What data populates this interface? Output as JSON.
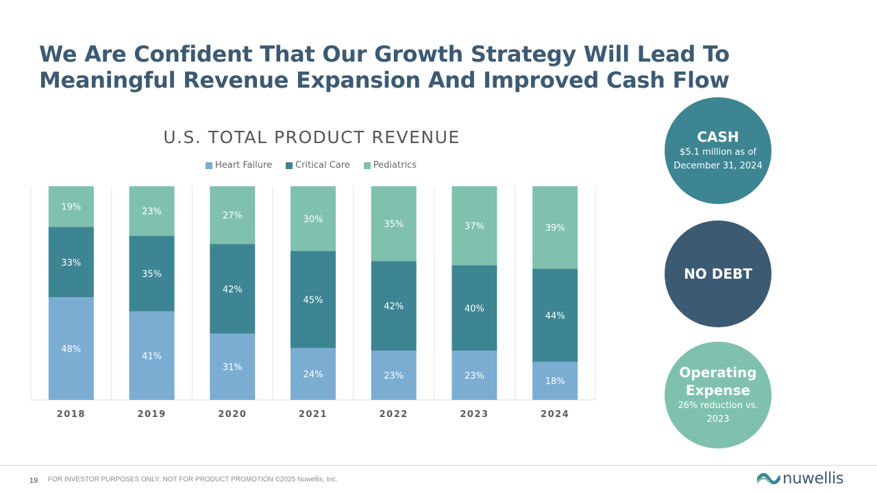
{
  "slide": {
    "title_line1": "We Are Confident That Our Growth Strategy Will Lead To",
    "title_line2": "Meaningful Revenue Expansion And Improved Cash Flow",
    "page_number": "19",
    "footer": "FOR INVESTOR PURPOSES ONLY: NOT FOR PRODUCT PROMOTION ©2025 Nuwellis, Inc.",
    "logo_text": "nuwellis"
  },
  "circles": {
    "cash": {
      "heading": "CASH",
      "text": "$5.1 million as of December 31, 2024"
    },
    "debt": {
      "heading": "NO DEBT"
    },
    "opex": {
      "heading": "Operating Expense",
      "text": "26% reduction vs. 2023"
    }
  },
  "chart_data": {
    "type": "bar",
    "stacked": true,
    "percent_stacked": true,
    "title": "U.S. TOTAL PRODUCT REVENUE",
    "legend_position": "top",
    "categories": [
      "2018",
      "2019",
      "2020",
      "2021",
      "2022",
      "2023",
      "2024"
    ],
    "series": [
      {
        "name": "Heart Failure",
        "color": "#7badd3",
        "values": [
          48,
          41,
          31,
          24,
          23,
          23,
          18
        ]
      },
      {
        "name": "Critical Care",
        "color": "#3e8593",
        "values": [
          33,
          35,
          42,
          45,
          42,
          40,
          44
        ]
      },
      {
        "name": "Pediatrics",
        "color": "#7fc1ae",
        "values": [
          19,
          23,
          27,
          30,
          35,
          37,
          39
        ]
      }
    ],
    "data_label_suffix": "%"
  },
  "colors": {
    "title": "#3d5a73",
    "cash_circle": "#3e8593",
    "debt_circle": "#3d5a73",
    "opex_circle": "#7fc1ae"
  }
}
